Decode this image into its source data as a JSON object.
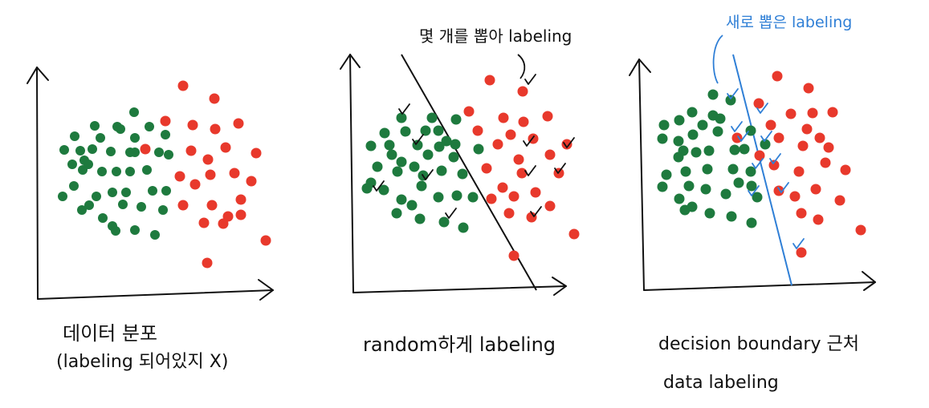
{
  "colors": {
    "ink": "#111111",
    "green": "#1e7a3e",
    "red": "#e8392c",
    "blue": "#2f7fd6"
  },
  "panels": [
    {
      "id": "distribution",
      "caption_line1": "데이터 분포",
      "caption_line2": "(labeling 되어있지 X)"
    },
    {
      "id": "random",
      "annotation": "몇 개를 뽑아 labeling",
      "caption_line1": "random하게 labeling"
    },
    {
      "id": "decision-boundary",
      "annotation": "새로 뽑은 labeling",
      "caption_line1": "decision boundary 근처",
      "caption_line2": "data labeling"
    }
  ],
  "icons": {
    "check_mark": "check-mark-icon",
    "arrow": "axis-arrow-icon"
  }
}
